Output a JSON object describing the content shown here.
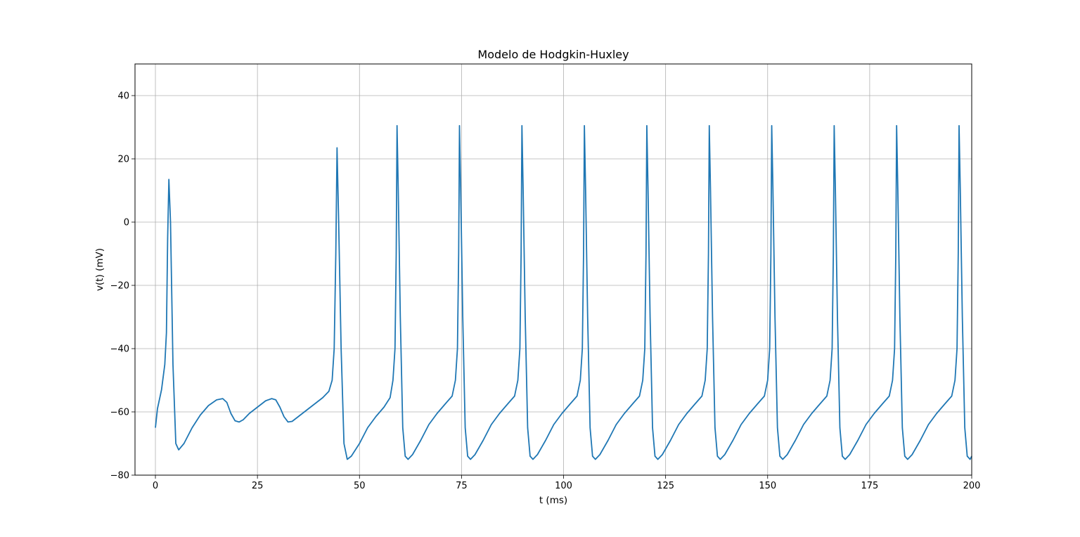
{
  "chart_data": {
    "type": "line",
    "title": "Modelo de Hodgkin-Huxley",
    "xlabel": "t (ms)",
    "ylabel": "v(t) (mV)",
    "xlim": [
      -5,
      200
    ],
    "ylim": [
      -80,
      50
    ],
    "xticks": [
      0,
      25,
      50,
      75,
      100,
      125,
      150,
      175,
      200
    ],
    "xtick_labels": [
      "0",
      "25",
      "50",
      "75",
      "100",
      "125",
      "150",
      "175",
      "200"
    ],
    "yticks": [
      -80,
      -60,
      -40,
      -20,
      0,
      20,
      40
    ],
    "ytick_labels": [
      "−80",
      "−60",
      "−40",
      "−20",
      "0",
      "20",
      "40"
    ],
    "grid": true,
    "legend": false,
    "series": [
      {
        "color": "#1f77b4",
        "x": [
          0,
          0.5,
          1.5,
          2.3,
          2.7,
          3.0,
          3.3,
          3.7,
          4.3,
          5.0,
          5.7,
          7,
          9,
          11,
          13,
          15,
          16.5,
          17.5,
          18.5,
          19.5,
          20.5,
          21.5,
          23,
          25,
          27,
          28.5,
          29.5,
          30.5,
          31.5,
          32.5,
          33.5,
          35,
          37,
          39,
          41,
          42.5,
          43.3,
          43.8,
          44.2,
          44.5,
          44.9,
          45.5,
          46.2,
          47.0,
          48,
          50,
          52,
          54,
          56,
          57.5,
          58.2,
          58.7,
          59.0,
          59.2,
          59.5,
          60.0,
          60.6,
          61.2,
          61.9,
          63,
          65,
          67,
          69,
          71,
          72.7,
          73.5,
          74.0,
          74.3,
          74.5,
          74.8,
          75.3,
          75.9,
          76.5,
          77.2,
          78.3,
          80.3,
          82.3,
          84.3,
          86.3,
          88.0,
          88.8,
          89.3,
          89.6,
          89.8,
          90.1,
          90.6,
          91.2,
          91.8,
          92.5,
          93.6,
          95.6,
          97.6,
          99.6,
          101.6,
          103.3,
          104.1,
          104.6,
          104.9,
          105.1,
          105.4,
          105.9,
          106.5,
          107.1,
          107.8,
          108.9,
          110.9,
          112.9,
          114.9,
          116.9,
          118.6,
          119.4,
          119.9,
          120.2,
          120.4,
          120.7,
          121.2,
          121.8,
          122.4,
          123.1,
          124.2,
          126.2,
          128.2,
          130.2,
          132.2,
          133.9,
          134.7,
          135.2,
          135.5,
          135.7,
          136.0,
          136.5,
          137.1,
          137.7,
          138.4,
          139.5,
          141.5,
          143.5,
          145.5,
          147.5,
          149.2,
          150.0,
          150.5,
          150.8,
          151.0,
          151.3,
          151.8,
          152.4,
          153.0,
          153.7,
          154.8,
          156.8,
          158.8,
          160.8,
          162.8,
          164.5,
          165.3,
          165.8,
          166.1,
          166.3,
          166.6,
          167.1,
          167.7,
          168.3,
          169.0,
          170.1,
          172.1,
          174.1,
          176.1,
          178.1,
          179.8,
          180.6,
          181.1,
          181.4,
          181.6,
          181.9,
          182.4,
          183.0,
          183.6,
          184.3,
          185.4,
          187.4,
          189.4,
          191.4,
          193.4,
          195.1,
          195.9,
          196.4,
          196.7,
          196.9,
          197.2,
          197.7,
          198.3,
          198.9,
          199.6,
          200
        ],
        "y": [
          -65,
          -59,
          -53,
          -45,
          -35,
          -5,
          13.5,
          0,
          -45,
          -70,
          -72,
          -70,
          -65,
          -61,
          -58,
          -56.2,
          -55.8,
          -57,
          -60.5,
          -62.8,
          -63.2,
          -62.5,
          -60.5,
          -58.5,
          -56.5,
          -55.8,
          -56.2,
          -58.5,
          -61.5,
          -63.2,
          -63,
          -61.5,
          -59.5,
          -57.5,
          -55.5,
          -53.5,
          -50,
          -40,
          -10,
          23.5,
          0,
          -40,
          -70,
          -75,
          -74,
          -70,
          -65,
          -61.5,
          -58.5,
          -55.5,
          -50,
          -40,
          -10,
          30.5,
          10,
          -30,
          -65,
          -74,
          -75,
          -73.5,
          -69,
          -64,
          -60.5,
          -57.5,
          -55,
          -50,
          -40,
          -10,
          30.5,
          10,
          -30,
          -65,
          -74,
          -75,
          -73.5,
          -69,
          -64,
          -60.5,
          -57.5,
          -55,
          -50,
          -40,
          -10,
          30.5,
          10,
          -30,
          -65,
          -74,
          -75,
          -73.5,
          -69,
          -64,
          -60.5,
          -57.5,
          -55,
          -50,
          -40,
          -10,
          30.5,
          10,
          -30,
          -65,
          -74,
          -75,
          -73.5,
          -69,
          -64,
          -60.5,
          -57.5,
          -55,
          -50,
          -40,
          -10,
          30.5,
          10,
          -30,
          -65,
          -74,
          -75,
          -73.5,
          -69,
          -64,
          -60.5,
          -57.5,
          -55,
          -50,
          -40,
          -10,
          30.5,
          10,
          -30,
          -65,
          -74,
          -75,
          -73.5,
          -69,
          -64,
          -60.5,
          -57.5,
          -55,
          -50,
          -40,
          -10,
          30.5,
          10,
          -30,
          -65,
          -74,
          -75,
          -73.5,
          -69,
          -64,
          -60.5,
          -57.5,
          -55,
          -50,
          -40,
          -10,
          30.5,
          10,
          -30,
          -65,
          -74,
          -75,
          -73.5,
          -69,
          -64,
          -60.5,
          -57.5,
          -55,
          -50,
          -40,
          -10,
          30.5,
          10,
          -30,
          -65,
          -74,
          -75,
          -73.5,
          -69,
          -64,
          -60.5,
          -57.5,
          -55,
          -50,
          -40,
          -10,
          30.5,
          10,
          -30,
          -65,
          -74,
          -75,
          -74
        ]
      }
    ]
  }
}
